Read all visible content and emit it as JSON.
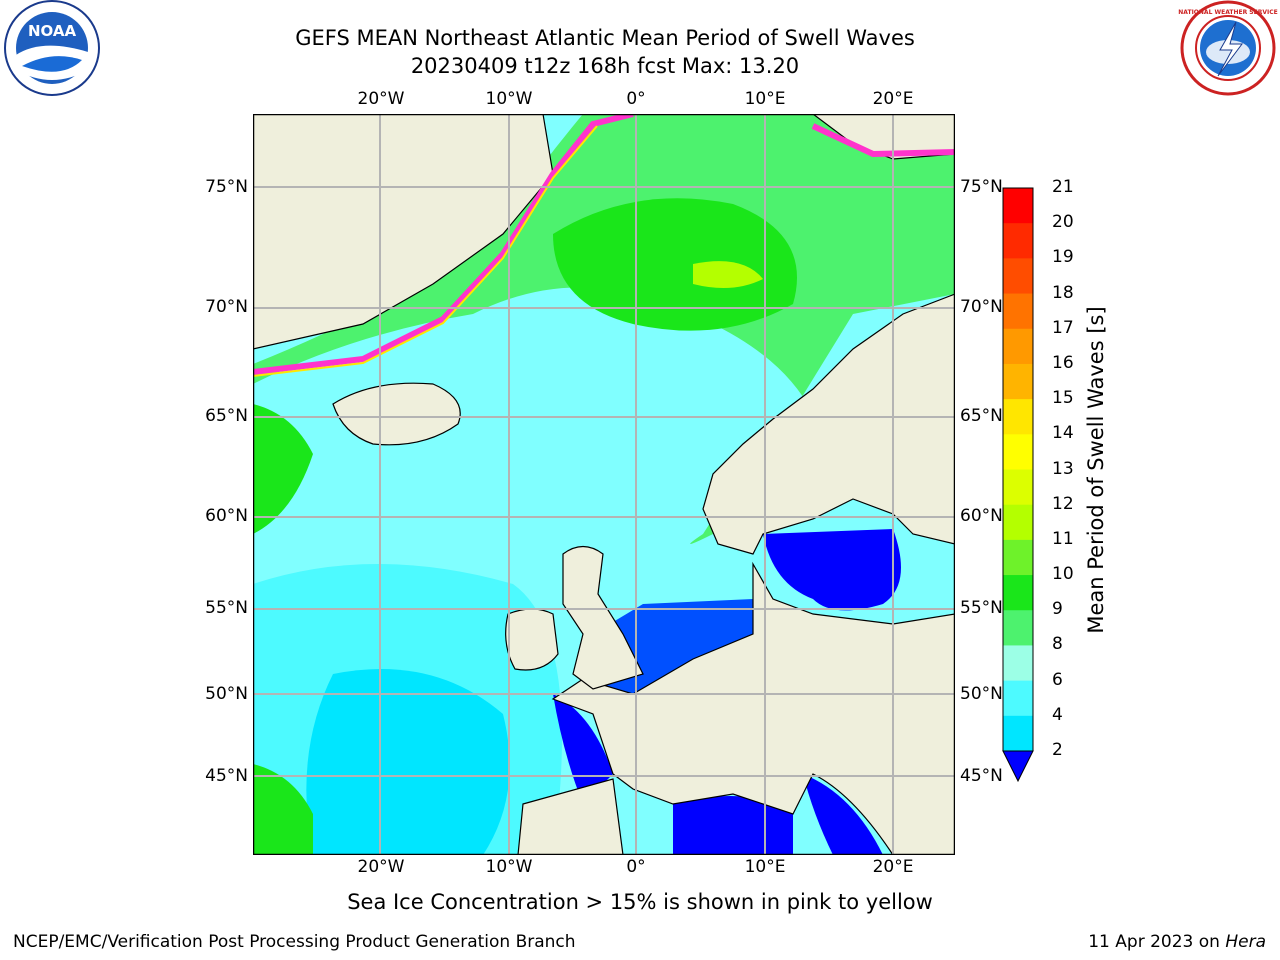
{
  "header": {
    "title": "GEFS MEAN Northeast Atlantic Mean Period of Swell Waves",
    "subtitle": "20230409 t12z 168h fcst   Max: 13.20"
  },
  "logos": {
    "left": "NOAA",
    "right": "NATIONAL WEATHER SERVICE"
  },
  "map": {
    "lon_top": [
      "20°W",
      "10°W",
      "0°",
      "10°E",
      "20°E"
    ],
    "lon_bottom": [
      "20°W",
      "10°W",
      "0°",
      "10°E",
      "20°E"
    ],
    "lat_left": [
      "75°N",
      "70°N",
      "65°N",
      "60°N",
      "55°N",
      "50°N",
      "45°N"
    ],
    "lat_right": [
      "75°N",
      "70°N",
      "65°N",
      "60°N",
      "55°N",
      "50°N",
      "45°N"
    ]
  },
  "colorbar": {
    "title": "Mean Period of Swell Waves [s]",
    "labels": [
      "21",
      "20",
      "19",
      "18",
      "17",
      "16",
      "15",
      "14",
      "13",
      "12",
      "11",
      "10",
      "9",
      "8",
      "6",
      "4",
      "2"
    ],
    "colors": [
      "#ff0000",
      "#ff2a00",
      "#ff4d00",
      "#ff7300",
      "#ff9900",
      "#ffb400",
      "#ffe600",
      "#ffff00",
      "#dcff00",
      "#b4ff00",
      "#6ef22a",
      "#1ae61a",
      "#4df26e",
      "#9cffe6",
      "#4dfaff",
      "#00e6ff",
      "#0078ff"
    ],
    "extend_color": "#0000ff"
  },
  "legend_note": "Sea Ice Concentration > 15% is shown in pink to yellow",
  "footer": {
    "left": "NCEP/EMC/Verification Post Processing Product Generation Branch",
    "date": "11 Apr 2023 on ",
    "machine": "Hera"
  },
  "colors": {
    "land": "#efefdc",
    "sea_mid": "#80ffff",
    "sea_low": "#00e6ff",
    "sea_high": "#33e633",
    "shallow": "#0000ff",
    "ice": "#ff33cc",
    "grid": "#b4b4b4"
  }
}
